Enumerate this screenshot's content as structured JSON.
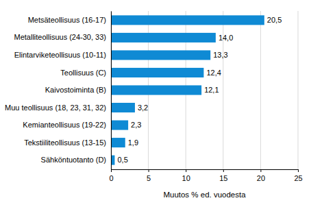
{
  "chart_data": {
    "type": "bar",
    "orientation": "horizontal",
    "categories": [
      "Metsäteollisuus (16-17)",
      "Metalliteollisuus (24-30, 33)",
      "Elintarviketeollisuus (10-11)",
      "Teollisuus (C)",
      "Kaivostoiminta (B)",
      "Muu teollisuus (18, 23, 31, 32)",
      "Kemianteollisuus (19-22)",
      "Tekstiiliteollisuus (13-15)",
      "Sähköntuotanto (D)"
    ],
    "values": [
      20.5,
      14.0,
      13.3,
      12.4,
      12.1,
      3.2,
      2.3,
      1.9,
      0.5
    ],
    "value_labels": [
      "20,5",
      "14,0",
      "13,3",
      "12,4",
      "12,1",
      "3,2",
      "2,3",
      "1,9",
      "0,5"
    ],
    "color": "#0f8ad4",
    "xlabel": "Muutos % ed. vuodesta",
    "xlim": [
      0,
      25
    ],
    "xticks": [
      0,
      5,
      10,
      15,
      20,
      25
    ],
    "grid": true,
    "data_labels": true
  }
}
